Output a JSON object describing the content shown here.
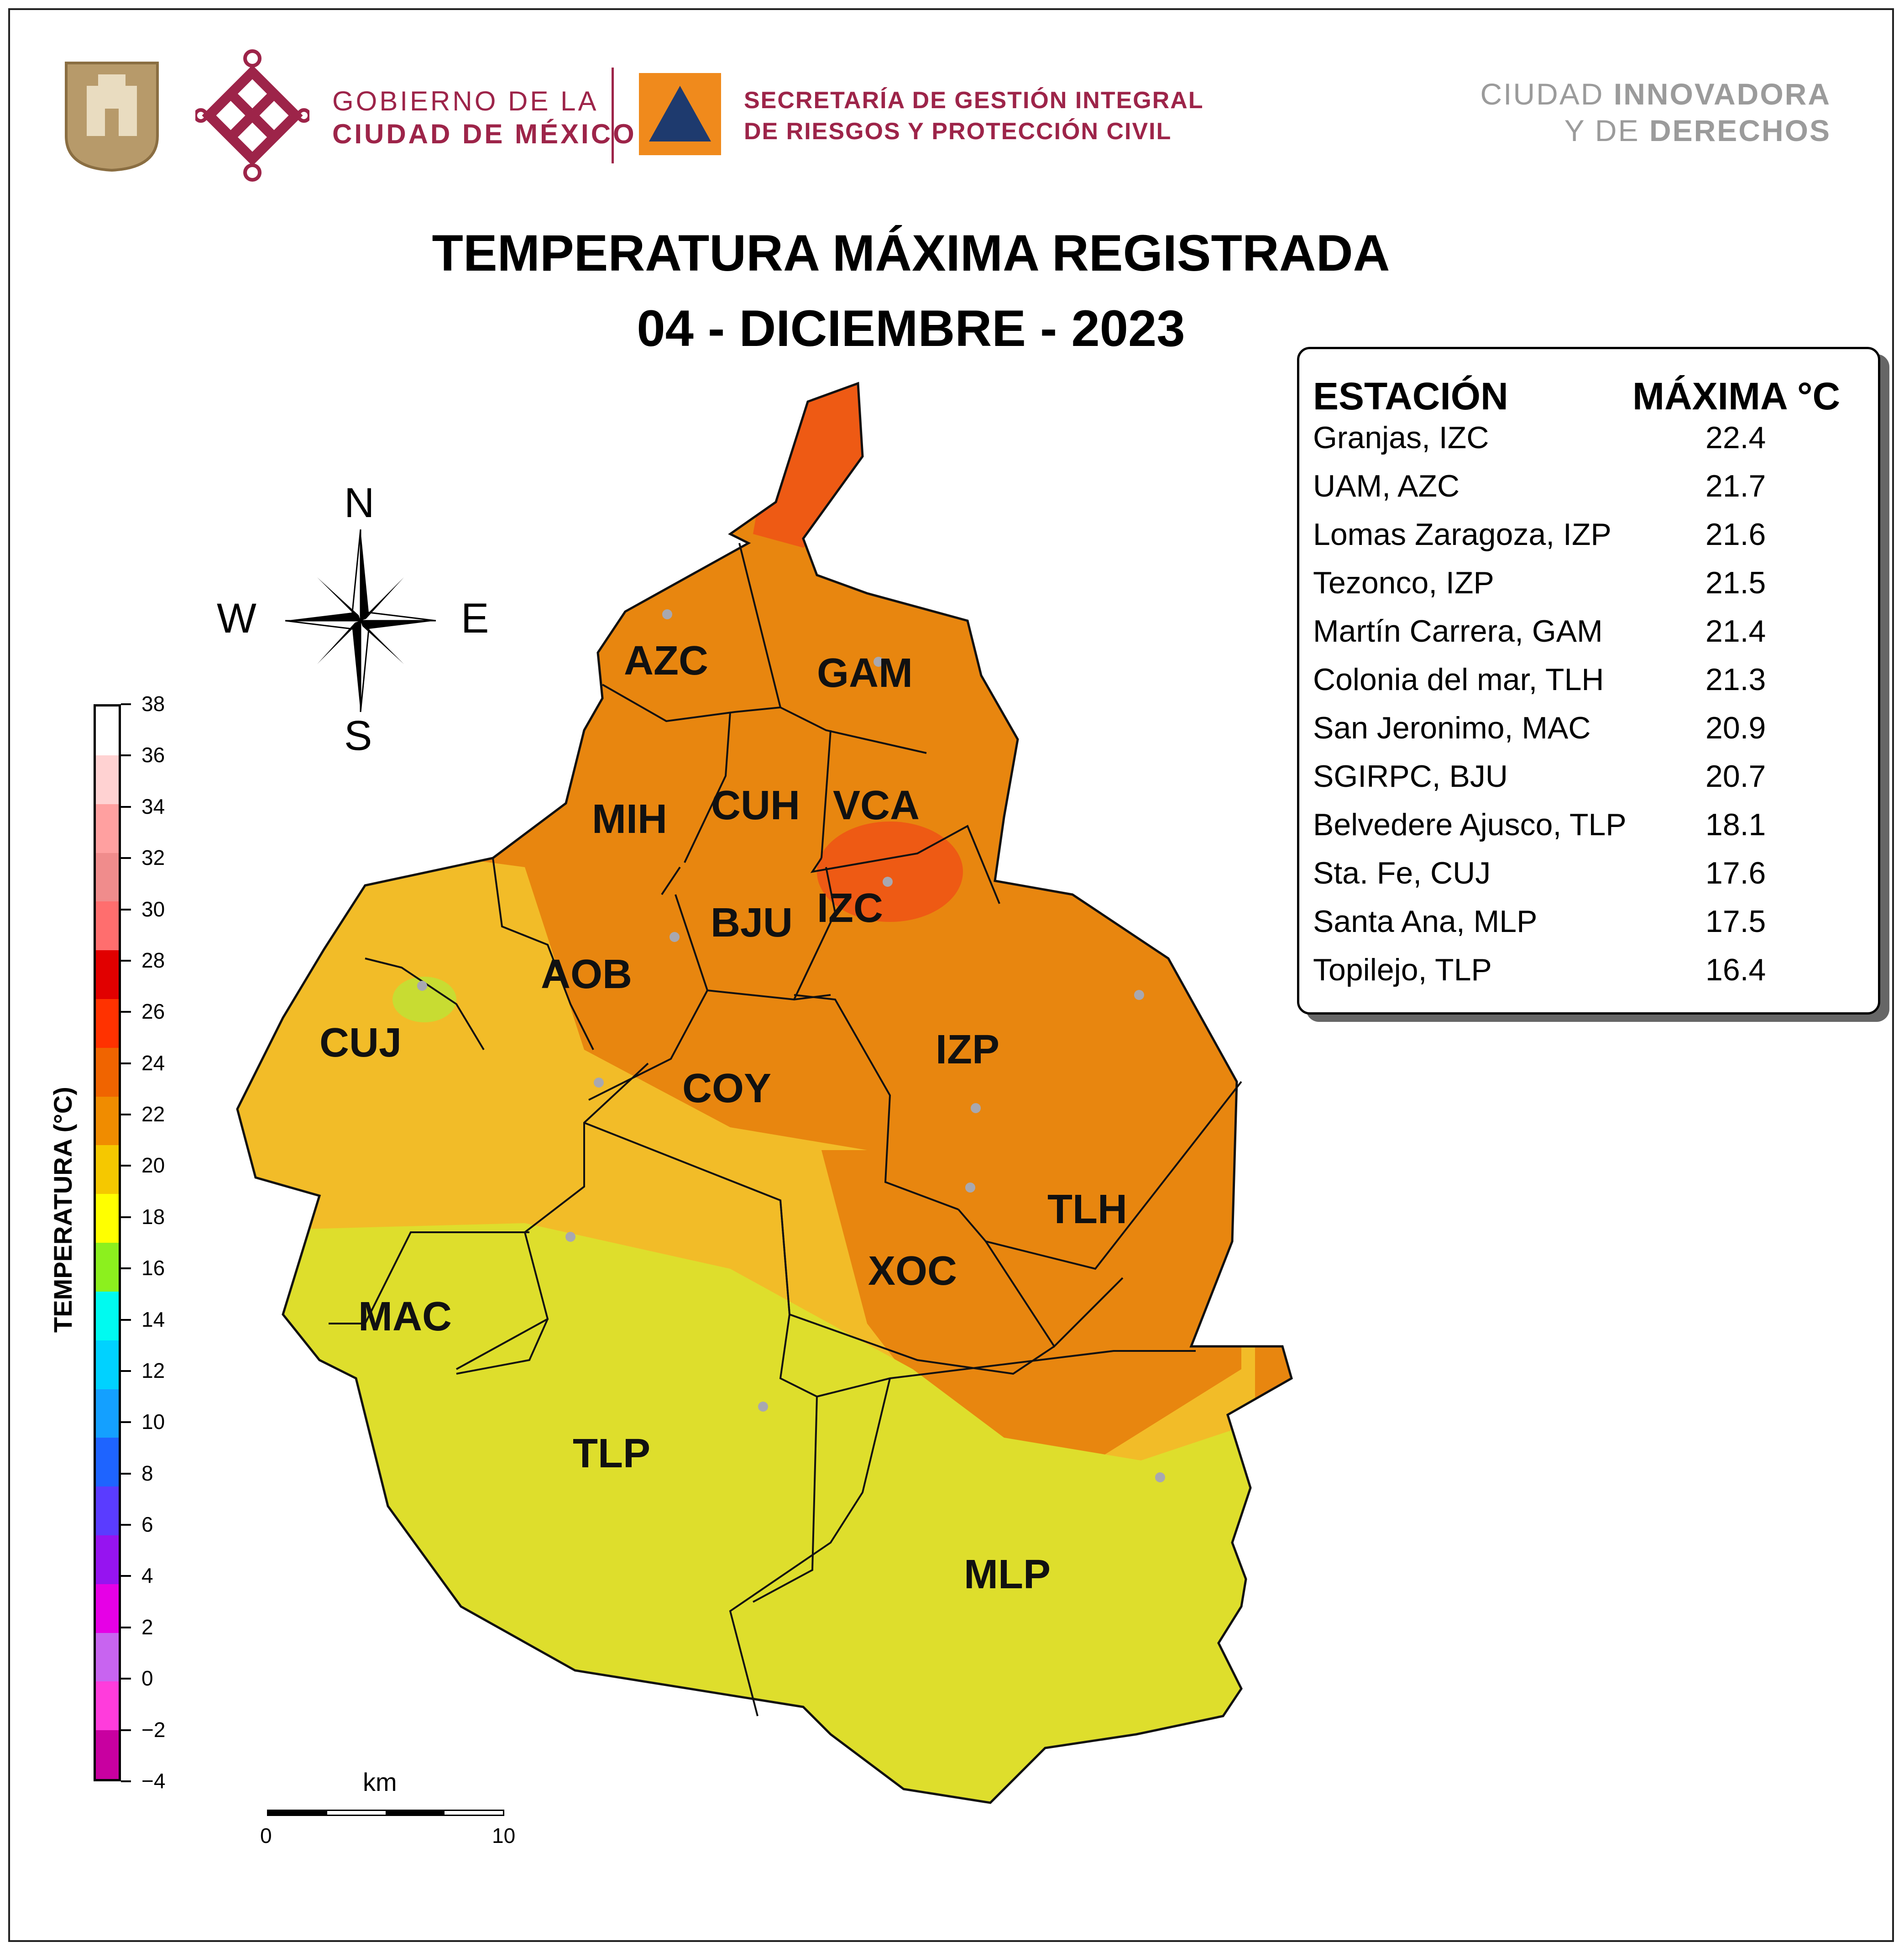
{
  "header": {
    "gov_line1": "GOBIERNO DE LA",
    "gov_line2": "CIUDAD DE MÉXICO",
    "sec_line1": "SECRETARÍA DE GESTIÓN INTEGRAL",
    "sec_line2": "DE RIESGOS Y PROTECCIÓN CIVIL",
    "brand_a": "CIUDAD ",
    "brand_b": "INNOVADORA",
    "brand_c": "Y DE ",
    "brand_d": "DERECHOS"
  },
  "title": {
    "line1": "TEMPERATURA MÁXIMA REGISTRADA",
    "line2": "04 - DICIEMBRE - 2023"
  },
  "table": {
    "col_station": "ESTACIÓN",
    "col_max": "MÁXIMA °C",
    "rows": [
      {
        "station": "Granjas, IZC",
        "max": "22.4"
      },
      {
        "station": "UAM, AZC",
        "max": "21.7"
      },
      {
        "station": "Lomas Zaragoza, IZP",
        "max": "21.6"
      },
      {
        "station": "Tezonco, IZP",
        "max": "21.5"
      },
      {
        "station": "Martín Carrera, GAM",
        "max": "21.4"
      },
      {
        "station": "Colonia del mar, TLH",
        "max": "21.3"
      },
      {
        "station": "San Jeronimo, MAC",
        "max": "20.9"
      },
      {
        "station": "SGIRPC, BJU",
        "max": "20.7"
      },
      {
        "station": "Belvedere Ajusco, TLP",
        "max": "18.1"
      },
      {
        "station": "Sta. Fe, CUJ",
        "max": "17.6"
      },
      {
        "station": "Santa Ana, MLP",
        "max": "17.5"
      },
      {
        "station": "Topilejo, TLP",
        "max": "16.4"
      }
    ]
  },
  "compass": {
    "n": "N",
    "s": "S",
    "e": "E",
    "w": "W"
  },
  "legend": {
    "title": "TEMPERATURA (°C)",
    "ticks": [
      "−4",
      "−2",
      "0",
      "2",
      "4",
      "6",
      "8",
      "10",
      "12",
      "14",
      "16",
      "18",
      "20",
      "22",
      "24",
      "26",
      "28",
      "30",
      "32",
      "34",
      "36",
      "38"
    ],
    "colors": [
      "#c800a0",
      "#ff3cdc",
      "#c864f0",
      "#e600e6",
      "#9614f0",
      "#5a3cff",
      "#1e64ff",
      "#14a0ff",
      "#00d2ff",
      "#00faf0",
      "#8cf01e",
      "#ffff00",
      "#f5c800",
      "#f08c00",
      "#f06400",
      "#ff3200",
      "#e10000",
      "#ff6e6e",
      "#f08c8c",
      "#ffa0a0",
      "#ffd2d2",
      "#ffffff"
    ]
  },
  "scale": {
    "unit": "km",
    "start": "0",
    "end": "10"
  },
  "map": {
    "alcaldias": [
      "AZC",
      "GAM",
      "MIH",
      "CUH",
      "VCA",
      "BJU",
      "IZC",
      "AOB",
      "CUJ",
      "COY",
      "IZP",
      "TLH",
      "XOC",
      "MAC",
      "TLP",
      "MLP"
    ],
    "zone_colors": {
      "warm": "#e8860f",
      "mild": "#f2bc28",
      "cool": "#dede2c",
      "hot": "#ee5a14"
    }
  }
}
